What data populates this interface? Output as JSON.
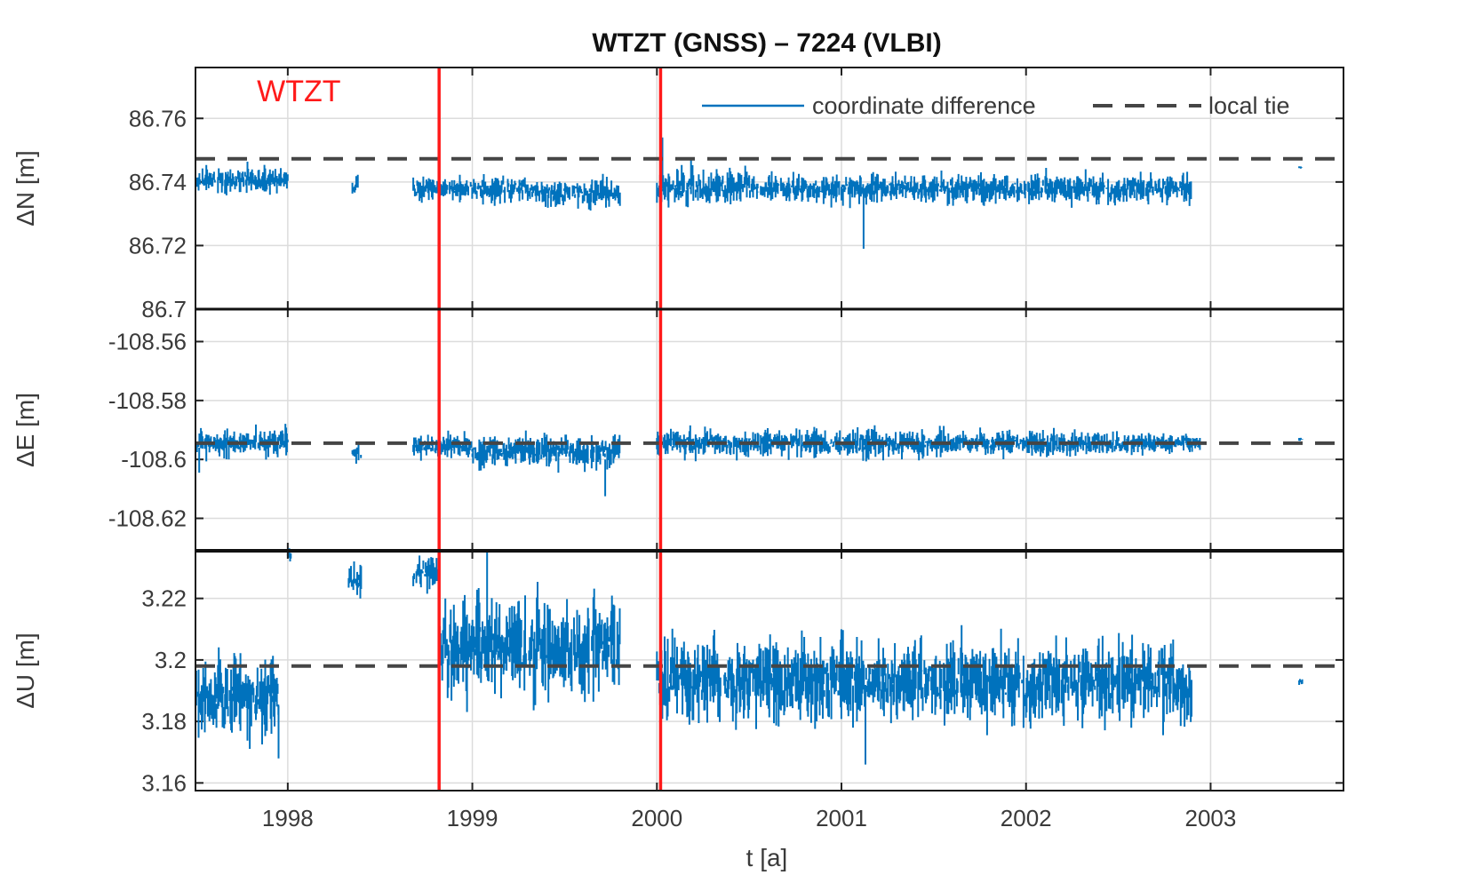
{
  "chart_data": {
    "title": "WTZT (GNSS) – 7224 (VLBI)",
    "type": "line",
    "xlabel": "t [a]",
    "xlim": [
      1997.5,
      2003.72
    ],
    "x_ticks": [
      1998,
      1999,
      2000,
      2001,
      2002,
      2003
    ],
    "x_tick_labels": [
      "1998",
      "1999",
      "2000",
      "2001",
      "2002",
      "2003"
    ],
    "grid": true,
    "legend": {
      "placement": "top-right of upper panel",
      "entries": [
        {
          "label": "coordinate difference",
          "style": "solid",
          "color": "#0072BD"
        },
        {
          "label": "local tie",
          "style": "dashed",
          "color": "#454545"
        }
      ]
    },
    "annotation": {
      "text": "WTZT",
      "color": "#ff1a1a",
      "x": 1998.06,
      "panel": 0
    },
    "event_lines": {
      "color": "#ff1a1a",
      "x": [
        1998.82,
        2000.02
      ]
    },
    "colors": {
      "series": "#0072BD",
      "tie": "#454545",
      "event": "#ff1a1a",
      "grid": "#dcdcdc"
    },
    "panels": [
      {
        "ylabel": "ΔN [m]",
        "ylim": [
          86.7,
          86.776
        ],
        "y_ticks": [
          86.7,
          86.72,
          86.74,
          86.76
        ],
        "y_tick_labels": [
          "86.7",
          "86.72",
          "86.74",
          "86.76"
        ],
        "local_tie": 86.7473,
        "series_name": "coordinate difference",
        "segments": [
          {
            "t0": 1997.5,
            "t1": 1998.0,
            "mean": 86.7405,
            "amp": 0.0032,
            "seed": 11
          },
          {
            "t0": 1998.35,
            "t1": 1998.38,
            "mean": 86.7385,
            "amp": 0.003,
            "seed": 12
          },
          {
            "t0": 1998.68,
            "t1": 1999.3,
            "mean": 86.738,
            "amp": 0.003,
            "seed": 13
          },
          {
            "t0": 1999.3,
            "t1": 1999.8,
            "mean": 86.7365,
            "amp": 0.0035,
            "seed": 14
          },
          {
            "t0": 2000.0,
            "t1": 2000.5,
            "mean": 86.7385,
            "amp": 0.0045,
            "seed": 15
          },
          {
            "t0": 2000.5,
            "t1": 2002.9,
            "mean": 86.738,
            "amp": 0.0035,
            "seed": 16
          },
          {
            "t0": 2003.48,
            "t1": 2003.5,
            "mean": 86.7445,
            "amp": 0.0004,
            "seed": 17
          }
        ],
        "spikes": [
          {
            "t": 2001.12,
            "v0": 86.738,
            "v1": 86.719
          },
          {
            "t": 2000.03,
            "v0": 86.738,
            "v1": 86.754
          }
        ]
      },
      {
        "ylabel": "ΔE [m]",
        "ylim": [
          -108.631,
          -108.549
        ],
        "y_ticks": [
          -108.62,
          -108.6,
          -108.58,
          -108.56
        ],
        "y_tick_labels": [
          "-108.62",
          "-108.6",
          "-108.58",
          "-108.56"
        ],
        "local_tie": -108.5945,
        "series_name": "coordinate difference",
        "segments": [
          {
            "t0": 1997.5,
            "t1": 1998.0,
            "mean": -108.5945,
            "amp": 0.0035,
            "seed": 21
          },
          {
            "t0": 1998.35,
            "t1": 1998.4,
            "mean": -108.5975,
            "amp": 0.0025,
            "seed": 22
          },
          {
            "t0": 1998.68,
            "t1": 1999.0,
            "mean": -108.5955,
            "amp": 0.003,
            "seed": 23
          },
          {
            "t0": 1999.0,
            "t1": 1999.8,
            "mean": -108.5975,
            "amp": 0.004,
            "seed": 24
          },
          {
            "t0": 2000.0,
            "t1": 2002.4,
            "mean": -108.5945,
            "amp": 0.0035,
            "seed": 25
          },
          {
            "t0": 2002.4,
            "t1": 2002.95,
            "mean": -108.5945,
            "amp": 0.0025,
            "seed": 26
          },
          {
            "t0": 2003.48,
            "t1": 2003.5,
            "mean": -108.593,
            "amp": 0.0005,
            "seed": 27
          }
        ],
        "spikes": [
          {
            "t": 1999.72,
            "v0": -108.6,
            "v1": -108.6125
          },
          {
            "t": 1997.52,
            "v0": -108.596,
            "v1": -108.6045
          }
        ]
      },
      {
        "ylabel": "ΔU [m]",
        "ylim": [
          3.1575,
          3.2355
        ],
        "y_ticks": [
          3.16,
          3.18,
          3.2,
          3.22
        ],
        "y_tick_labels": [
          "3.16",
          "3.18",
          "3.2",
          "3.22"
        ],
        "local_tie": 3.198,
        "series_name": "coordinate difference",
        "segments": [
          {
            "t0": 1997.5,
            "t1": 1997.95,
            "mean": 3.188,
            "amp": 0.009,
            "seed": 31
          },
          {
            "t0": 1998.0,
            "t1": 1998.02,
            "mean": 3.234,
            "amp": 0.0015,
            "seed": 32
          },
          {
            "t0": 1998.33,
            "t1": 1998.4,
            "mean": 3.226,
            "amp": 0.004,
            "seed": 33
          },
          {
            "t0": 1998.68,
            "t1": 1998.82,
            "mean": 3.228,
            "amp": 0.004,
            "seed": 34
          },
          {
            "t0": 1998.82,
            "t1": 1999.8,
            "mean": 3.204,
            "amp": 0.012,
            "seed": 35
          },
          {
            "t0": 2000.0,
            "t1": 2002.8,
            "mean": 3.193,
            "amp": 0.01,
            "seed": 36
          },
          {
            "t0": 2002.8,
            "t1": 2002.9,
            "mean": 3.189,
            "amp": 0.008,
            "seed": 37
          },
          {
            "t0": 2003.48,
            "t1": 2003.5,
            "mean": 3.193,
            "amp": 0.001,
            "seed": 38
          }
        ],
        "spikes": [
          {
            "t": 2001.13,
            "v0": 3.19,
            "v1": 3.166
          },
          {
            "t": 1999.08,
            "v0": 3.205,
            "v1": 3.235
          },
          {
            "t": 1997.95,
            "v0": 3.185,
            "v1": 3.168
          }
        ]
      }
    ]
  }
}
